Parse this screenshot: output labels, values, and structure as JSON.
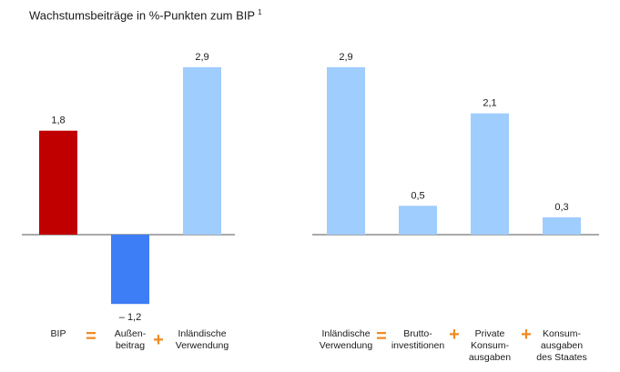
{
  "chart_data": [
    {
      "type": "bar",
      "title": "Wachstumsbeiträge in %-Punkten zum BIP",
      "title_footnote": "1",
      "categories": [
        "BIP",
        "Außen-|beitrag",
        "Inländische|Verwendung"
      ],
      "values": [
        1.8,
        -1.2,
        2.9
      ],
      "value_labels": [
        "1,8",
        "– 1,2",
        "2,9"
      ],
      "colors": [
        "#c00000",
        "#3d7df5",
        "#9fcdfd"
      ],
      "operators": [
        "=",
        "+"
      ],
      "grid": false
    },
    {
      "type": "bar",
      "categories": [
        "Inländische|Verwendung",
        "Brutto-|investitionen",
        "Private|Konsum-|ausgaben",
        "Konsum-|ausgaben|des Staates"
      ],
      "values": [
        2.9,
        0.5,
        2.1,
        0.3
      ],
      "value_labels": [
        "2,9",
        "0,5",
        "2,1",
        "0,3"
      ],
      "colors": [
        "#9fcdfd",
        "#9fcdfd",
        "#9fcdfd",
        "#9fcdfd"
      ],
      "operators": [
        "=",
        "+",
        "+"
      ],
      "grid": false
    }
  ],
  "colors": {
    "operator": "#f08a24",
    "axis": "#555555"
  }
}
